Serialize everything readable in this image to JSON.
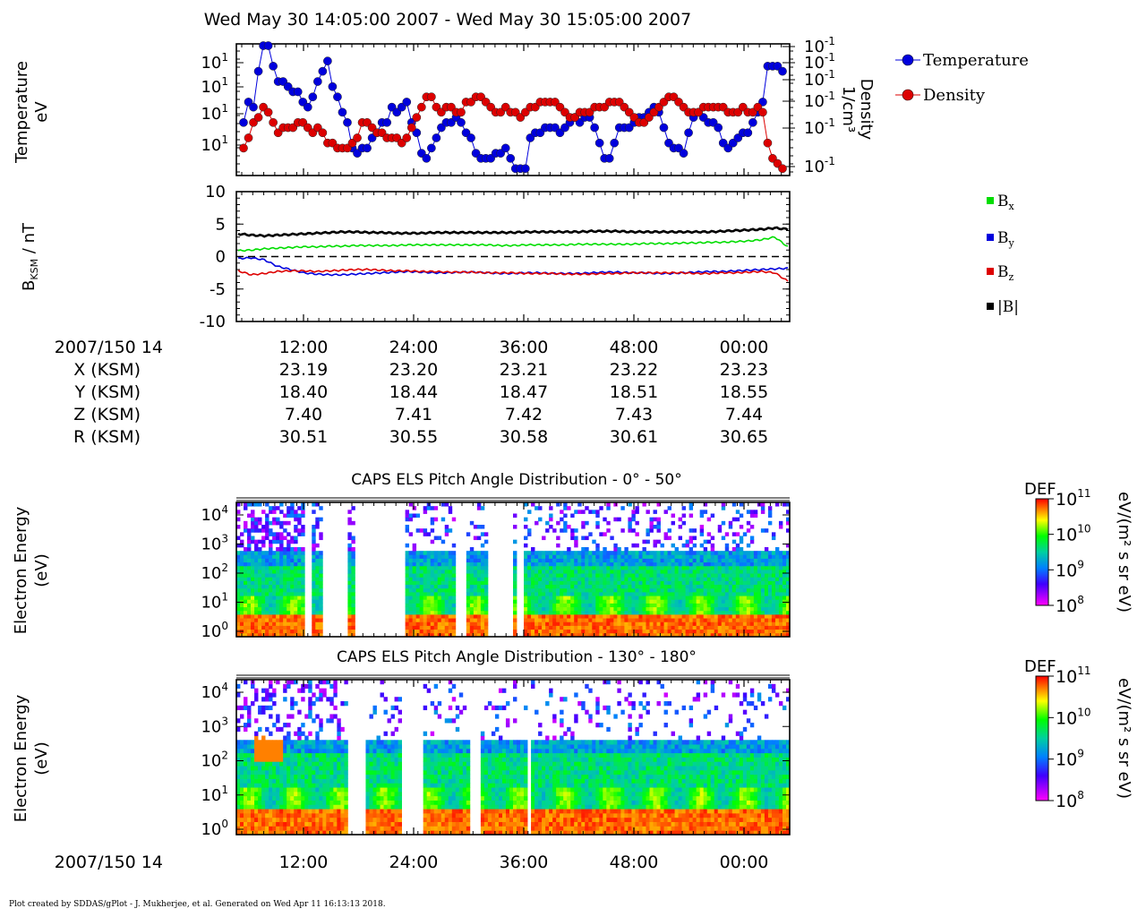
{
  "header": {
    "title": "Wed May 30 14:05:00 2007 - Wed May 30 15:05:00 2007"
  },
  "footer": {
    "text": "Plot created by SDDAS/gPlot - J. Mukherjee, et al.  Generated on Wed Apr 11 16:13:13 2018."
  },
  "colors": {
    "temperature": "#0000dd",
    "density": "#dd0000",
    "bx": "#00dd00",
    "by": "#0000dd",
    "bz": "#dd0000",
    "bmag": "#000000"
  },
  "time_axis": {
    "start_label": "2007/150 14",
    "tick_labels": [
      "12:00",
      "24:00",
      "36:00",
      "48:00",
      "00:00"
    ]
  },
  "ephemeris": {
    "rows": [
      {
        "label": "X (KSM)",
        "values": [
          "23.19",
          "23.20",
          "23.21",
          "23.22",
          "23.23"
        ]
      },
      {
        "label": "Y (KSM)",
        "values": [
          "18.40",
          "18.44",
          "18.47",
          "18.51",
          "18.55"
        ]
      },
      {
        "label": "Z (KSM)",
        "values": [
          "7.40",
          "7.41",
          "7.42",
          "7.43",
          "7.44"
        ]
      },
      {
        "label": "R (KSM)",
        "values": [
          "30.51",
          "30.55",
          "30.58",
          "30.61",
          "30.65"
        ]
      }
    ]
  },
  "chart_data": [
    {
      "type": "scatter",
      "panel": "plasma-moments",
      "ylabel_left": [
        "Temperature",
        "eV"
      ],
      "ylabel_right": [
        "Density",
        "1/cm³"
      ],
      "yticks_left": [
        "10^1",
        "10^1",
        "10^1",
        "10^1"
      ],
      "yticks_right": [
        "10^-1",
        "10^-1",
        "10^-1",
        "10^-1",
        "10^-1",
        "10^-1"
      ],
      "legend": [
        "Temperature",
        "Density"
      ],
      "legend_position": "right",
      "series": [
        {
          "name": "Temperature",
          "values": [
            10,
            14,
            13,
            20,
            25,
            25,
            21,
            18,
            18,
            17,
            16,
            16,
            14,
            13,
            15,
            18,
            20,
            22,
            17,
            15,
            12,
            10,
            5,
            4,
            5,
            5,
            7,
            8,
            10,
            10,
            13,
            12,
            13,
            14,
            10,
            8,
            4,
            3,
            5,
            7,
            9,
            10,
            10,
            11,
            10,
            8,
            7,
            4,
            3,
            3,
            3,
            4,
            4,
            5,
            3,
            1,
            1,
            1,
            7,
            8,
            8,
            9,
            9,
            9,
            8,
            9,
            10,
            11,
            10,
            11,
            11,
            9,
            6,
            3,
            3,
            6,
            9,
            9,
            9,
            10,
            11,
            11,
            12,
            13,
            12,
            9,
            6,
            5,
            5,
            4,
            8,
            11,
            12,
            11,
            10,
            10,
            9,
            6,
            5,
            6,
            7,
            8,
            8,
            10,
            12,
            14,
            21,
            21,
            21,
            20
          ]
        },
        {
          "name": "Density",
          "values": [
            5,
            7,
            10,
            11,
            13,
            12,
            10,
            8,
            9,
            9,
            9,
            10,
            10,
            9,
            8,
            9,
            8,
            6,
            6,
            5,
            5,
            5,
            6,
            7,
            10,
            10,
            9,
            8,
            8,
            7,
            7,
            7,
            6,
            7,
            9,
            11,
            13,
            15,
            15,
            13,
            12,
            13,
            13,
            12,
            12,
            14,
            14,
            15,
            15,
            14,
            13,
            12,
            12,
            13,
            12,
            12,
            11,
            12,
            13,
            13,
            14,
            14,
            14,
            14,
            13,
            12,
            11,
            11,
            12,
            12,
            12,
            13,
            13,
            13,
            14,
            14,
            14,
            13,
            12,
            11,
            10,
            10,
            11,
            12,
            13,
            14,
            15,
            15,
            14,
            13,
            12,
            12,
            12,
            13,
            13,
            13,
            13,
            13,
            12,
            12,
            12,
            13,
            12,
            12,
            13,
            12,
            6,
            3,
            2,
            1
          ]
        }
      ]
    },
    {
      "type": "line",
      "panel": "magnetic-field",
      "ylabel": "B_KSM / nT",
      "ylim": [
        -10,
        10
      ],
      "yticks": [
        "10",
        "5",
        "0",
        "-5",
        "-10"
      ],
      "legend": [
        "Bx",
        "By",
        "Bz",
        "|B|"
      ],
      "legend_position": "right",
      "series": [
        {
          "name": "Bx",
          "values": [
            0.9,
            1.0,
            1.2,
            1.3,
            1.4,
            1.5,
            1.5,
            1.6,
            1.6,
            1.7,
            1.7,
            1.7,
            1.7,
            1.8,
            1.8,
            1.8,
            1.8,
            1.8,
            1.8,
            1.8,
            1.7,
            1.7,
            1.8,
            1.8,
            1.8,
            1.8,
            1.9,
            1.9,
            1.9,
            1.9,
            1.9,
            2.0,
            2.0,
            2.0,
            2.1,
            2.1,
            2.2,
            2.2,
            2.3,
            2.4,
            2.6,
            3.0,
            1.5
          ]
        },
        {
          "name": "By",
          "values": [
            -0.3,
            -0.2,
            -0.5,
            -1.5,
            -2.0,
            -2.5,
            -2.7,
            -2.8,
            -2.8,
            -2.7,
            -2.6,
            -2.5,
            -2.4,
            -2.3,
            -2.4,
            -2.5,
            -2.5,
            -2.4,
            -2.4,
            -2.5,
            -2.6,
            -2.6,
            -2.5,
            -2.5,
            -2.6,
            -2.6,
            -2.6,
            -2.5,
            -2.4,
            -2.4,
            -2.5,
            -2.5,
            -2.6,
            -2.6,
            -2.5,
            -2.4,
            -2.3,
            -2.3,
            -2.2,
            -2.1,
            -2.0,
            -1.9,
            -1.8
          ]
        },
        {
          "name": "Bz",
          "values": [
            -2.2,
            -2.8,
            -2.6,
            -2.3,
            -2.2,
            -2.2,
            -2.3,
            -2.2,
            -2.1,
            -2.0,
            -2.0,
            -2.1,
            -2.2,
            -2.2,
            -2.3,
            -2.3,
            -2.4,
            -2.4,
            -2.4,
            -2.5,
            -2.5,
            -2.5,
            -2.6,
            -2.6,
            -2.6,
            -2.7,
            -2.7,
            -2.7,
            -2.6,
            -2.6,
            -2.5,
            -2.5,
            -2.5,
            -2.5,
            -2.5,
            -2.6,
            -2.6,
            -2.5,
            -2.5,
            -2.4,
            -2.3,
            -2.5,
            -3.8
          ]
        },
        {
          "name": "|B|",
          "values": [
            3.5,
            3.3,
            3.2,
            3.3,
            3.4,
            3.5,
            3.6,
            3.7,
            3.8,
            3.8,
            3.7,
            3.7,
            3.6,
            3.6,
            3.6,
            3.7,
            3.7,
            3.7,
            3.7,
            3.7,
            3.7,
            3.7,
            3.8,
            3.8,
            3.8,
            3.8,
            3.8,
            3.9,
            3.9,
            3.9,
            3.8,
            3.8,
            3.8,
            3.8,
            3.8,
            3.8,
            3.8,
            3.9,
            4.0,
            4.1,
            4.2,
            4.4,
            4.2
          ]
        }
      ]
    },
    {
      "type": "heatmap",
      "panel": "pitch-angle-0-50",
      "title": "CAPS ELS Pitch Angle Distribution - 0° - 50°",
      "ylabel": [
        "Electron Energy",
        "(eV)"
      ],
      "yticks": [
        "10^4",
        "10^3",
        "10^2",
        "10^1",
        "10^0"
      ],
      "colorbar": {
        "label": "DEF",
        "units": "eV/(m² s sr eV)",
        "ticks": [
          "10^11",
          "10^10",
          "10^9",
          "10^8"
        ]
      },
      "gaps": [
        [
          0.12,
          0.133
        ],
        [
          0.15,
          0.2
        ],
        [
          0.21,
          0.305
        ],
        [
          0.395,
          0.415
        ],
        [
          0.449,
          0.482
        ],
        [
          0.482,
          0.495
        ],
        [
          0.504,
          0.517
        ]
      ]
    },
    {
      "type": "heatmap",
      "panel": "pitch-angle-130-180",
      "title": "CAPS ELS Pitch Angle Distribution - 130° - 180°",
      "ylabel": [
        "Electron Energy",
        "(eV)"
      ],
      "yticks": [
        "10^4",
        "10^3",
        "10^2",
        "10^1",
        "10^0"
      ],
      "colorbar": {
        "label": "DEF",
        "units": "eV/(m² s sr eV)",
        "ticks": [
          "10^11",
          "10^10",
          "10^9",
          "10^8"
        ]
      },
      "gaps": [
        [
          0.195,
          0.233
        ],
        [
          0.297,
          0.335
        ],
        [
          0.42,
          0.44
        ],
        [
          0.52,
          0.53
        ]
      ]
    }
  ]
}
